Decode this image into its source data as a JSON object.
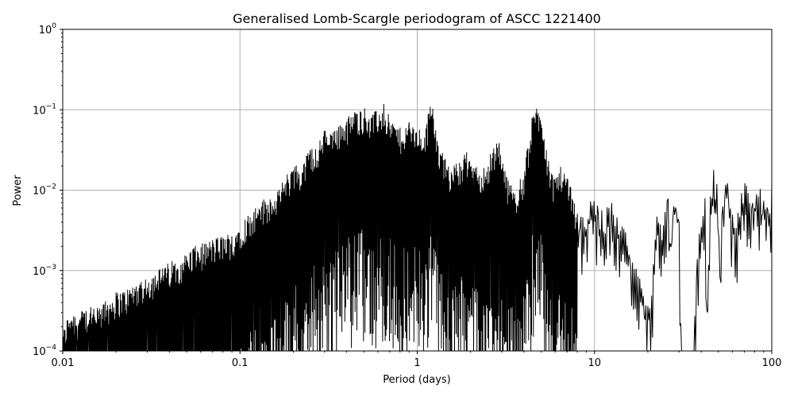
{
  "chart_data": {
    "type": "line",
    "title": "Generalised Lomb-Scargle periodogram of ASCC 1221400",
    "xlabel": "Period (days)",
    "ylabel": "Power",
    "x_scale": "log",
    "y_scale": "log",
    "xlim": [
      0.01,
      100
    ],
    "ylim": [
      0.0001,
      1
    ],
    "grid": true,
    "x_ticks": [
      {
        "value": 0.01,
        "label": "0.01"
      },
      {
        "value": 0.1,
        "label": "0.1"
      },
      {
        "value": 1,
        "label": "1"
      },
      {
        "value": 10,
        "label": "10"
      },
      {
        "value": 100,
        "label": "100"
      }
    ],
    "y_ticks": [
      {
        "value": 0.0001,
        "base": "10",
        "exp": "−4"
      },
      {
        "value": 0.001,
        "base": "10",
        "exp": "−3"
      },
      {
        "value": 0.01,
        "base": "10",
        "exp": "−2"
      },
      {
        "value": 0.1,
        "base": "10",
        "exp": "−1"
      },
      {
        "value": 1,
        "base": "10",
        "exp": "0"
      }
    ],
    "series": [
      {
        "color": "#000000",
        "x": [
          0.01,
          0.011,
          0.012,
          0.014,
          0.016,
          0.018,
          0.02,
          0.023,
          0.026,
          0.03,
          0.034,
          0.038,
          0.043,
          0.048,
          0.055,
          0.062,
          0.07,
          0.08,
          0.09,
          0.1,
          0.11,
          0.12,
          0.13,
          0.15,
          0.17,
          0.19,
          0.2,
          0.22,
          0.25,
          0.28,
          0.3,
          0.33,
          0.36,
          0.4,
          0.45,
          0.5,
          0.55,
          0.6,
          0.65,
          0.7,
          0.8,
          0.9,
          1.0,
          1.1,
          1.2,
          1.3,
          1.5,
          1.7,
          1.9,
          2.1,
          2.4,
          2.6,
          2.9,
          3.2,
          3.6,
          4.0,
          4.5,
          4.9,
          5.0,
          5.3,
          5.8,
          6.5,
          7.2,
          8.0,
          8.8,
          9.5,
          10.5,
          11.5,
          12.5,
          14,
          16,
          18,
          19.5,
          21,
          22,
          23,
          24,
          25,
          26,
          27,
          28,
          29,
          30,
          31,
          33,
          36,
          38,
          40,
          42,
          43,
          45,
          47,
          49,
          51,
          53,
          55,
          57,
          60,
          63,
          66,
          69,
          72,
          75,
          78,
          82,
          86,
          90,
          95,
          100
        ],
        "y": [
          0.00017,
          0.00035,
          0.0003,
          0.00035,
          0.00035,
          0.00045,
          0.00055,
          0.0006,
          0.00075,
          0.0009,
          0.001,
          0.0012,
          0.0014,
          0.0016,
          0.002,
          0.0022,
          0.0025,
          0.0028,
          0.003,
          0.004,
          0.005,
          0.006,
          0.0075,
          0.009,
          0.012,
          0.018,
          0.022,
          0.02,
          0.035,
          0.04,
          0.06,
          0.05,
          0.07,
          0.08,
          0.1,
          0.11,
          0.09,
          0.1,
          0.12,
          0.08,
          0.06,
          0.07,
          0.06,
          0.05,
          0.15,
          0.04,
          0.02,
          0.025,
          0.03,
          0.02,
          0.02,
          0.03,
          0.045,
          0.015,
          0.01,
          0.018,
          0.1,
          0.12,
          0.12,
          0.04,
          0.015,
          0.02,
          0.015,
          0.0055,
          0.0055,
          0.008,
          0.0065,
          0.006,
          0.008,
          0.0045,
          0.0022,
          0.0008,
          0.00045,
          0.0005,
          0.0045,
          0.005,
          0.0035,
          0.0055,
          0.0085,
          0.0025,
          0.0085,
          0.009,
          0.0045,
          0.0001,
          0.0001,
          0.0001,
          0.0015,
          0.007,
          0.0095,
          0.0005,
          0.0085,
          0.018,
          0.012,
          0.0017,
          0.009,
          0.0165,
          0.012,
          0.0055,
          0.0035,
          0.008,
          0.012,
          0.0125,
          0.0095,
          0.0075,
          0.0095,
          0.0105,
          0.0085,
          0.006,
          0.012
        ]
      }
    ]
  }
}
